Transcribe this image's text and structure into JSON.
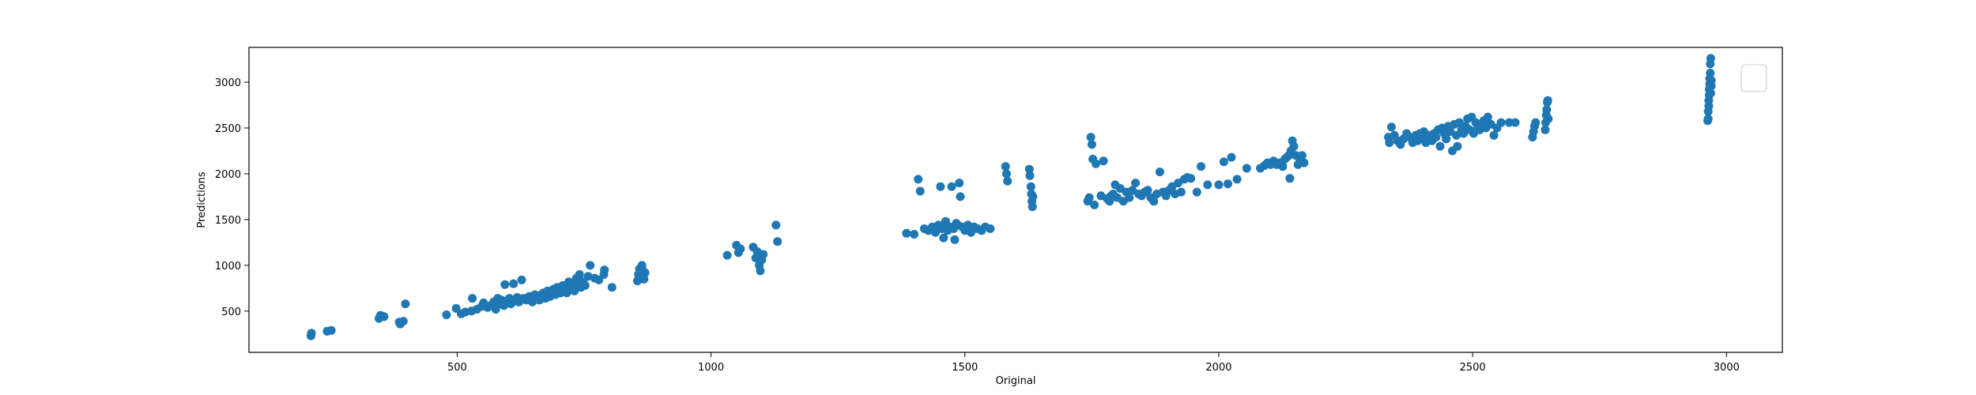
{
  "chart_data": {
    "type": "scatter",
    "title": "",
    "xlabel": "Original",
    "ylabel": "Predictions",
    "xlim": [
      90,
      3110
    ],
    "ylim": [
      50,
      3380
    ],
    "xticks": [
      500,
      1000,
      1500,
      2000,
      2500,
      3000
    ],
    "yticks": [
      500,
      1000,
      1500,
      2000,
      2500,
      3000
    ],
    "grid": false,
    "legend": "top-right",
    "marker_color": "#1f77b4",
    "points": [
      [
        212,
        230
      ],
      [
        213,
        260
      ],
      [
        244,
        280
      ],
      [
        252,
        290
      ],
      [
        346,
        420
      ],
      [
        349,
        455
      ],
      [
        356,
        440
      ],
      [
        386,
        380
      ],
      [
        388,
        360
      ],
      [
        394,
        390
      ],
      [
        398,
        580
      ],
      [
        479,
        460
      ],
      [
        498,
        530
      ],
      [
        508,
        470
      ],
      [
        516,
        490
      ],
      [
        528,
        500
      ],
      [
        530,
        640
      ],
      [
        539,
        520
      ],
      [
        548,
        550
      ],
      [
        552,
        590
      ],
      [
        560,
        540
      ],
      [
        566,
        560
      ],
      [
        572,
        600
      ],
      [
        576,
        520
      ],
      [
        580,
        640
      ],
      [
        584,
        580
      ],
      [
        588,
        620
      ],
      [
        592,
        560
      ],
      [
        594,
        790
      ],
      [
        598,
        600
      ],
      [
        603,
        640
      ],
      [
        606,
        580
      ],
      [
        611,
        800
      ],
      [
        615,
        610
      ],
      [
        618,
        650
      ],
      [
        622,
        600
      ],
      [
        627,
        840
      ],
      [
        630,
        640
      ],
      [
        636,
        620
      ],
      [
        642,
        660
      ],
      [
        648,
        600
      ],
      [
        653,
        680
      ],
      [
        657,
        640
      ],
      [
        662,
        620
      ],
      [
        666,
        680
      ],
      [
        670,
        700
      ],
      [
        674,
        640
      ],
      [
        678,
        720
      ],
      [
        683,
        660
      ],
      [
        687,
        700
      ],
      [
        690,
        740
      ],
      [
        694,
        680
      ],
      [
        697,
        760
      ],
      [
        701,
        720
      ],
      [
        704,
        700
      ],
      [
        708,
        780
      ],
      [
        712,
        740
      ],
      [
        716,
        700
      ],
      [
        720,
        820
      ],
      [
        724,
        760
      ],
      [
        728,
        800
      ],
      [
        731,
        720
      ],
      [
        735,
        860
      ],
      [
        737,
        780
      ],
      [
        741,
        900
      ],
      [
        744,
        760
      ],
      [
        748,
        820
      ],
      [
        752,
        780
      ],
      [
        758,
        880
      ],
      [
        762,
        1000
      ],
      [
        771,
        860
      ],
      [
        779,
        840
      ],
      [
        789,
        900
      ],
      [
        790,
        950
      ],
      [
        805,
        760
      ],
      [
        855,
        830
      ],
      [
        857,
        900
      ],
      [
        859,
        960
      ],
      [
        862,
        880
      ],
      [
        864,
        1000
      ],
      [
        866,
        940
      ],
      [
        868,
        850
      ],
      [
        870,
        920
      ],
      [
        1032,
        1110
      ],
      [
        1050,
        1220
      ],
      [
        1054,
        1140
      ],
      [
        1058,
        1180
      ],
      [
        1083,
        1200
      ],
      [
        1088,
        1080
      ],
      [
        1091,
        1150
      ],
      [
        1095,
        1000
      ],
      [
        1097,
        940
      ],
      [
        1100,
        1060
      ],
      [
        1103,
        1120
      ],
      [
        1128,
        1440
      ],
      [
        1131,
        1260
      ],
      [
        1385,
        1350
      ],
      [
        1400,
        1340
      ],
      [
        1408,
        1940
      ],
      [
        1412,
        1810
      ],
      [
        1420,
        1400
      ],
      [
        1428,
        1380
      ],
      [
        1436,
        1420
      ],
      [
        1442,
        1360
      ],
      [
        1448,
        1440
      ],
      [
        1452,
        1860
      ],
      [
        1455,
        1400
      ],
      [
        1458,
        1300
      ],
      [
        1462,
        1480
      ],
      [
        1466,
        1380
      ],
      [
        1470,
        1420
      ],
      [
        1474,
        1860
      ],
      [
        1478,
        1400
      ],
      [
        1480,
        1280
      ],
      [
        1483,
        1460
      ],
      [
        1486,
        1440
      ],
      [
        1489,
        1900
      ],
      [
        1491,
        1750
      ],
      [
        1495,
        1420
      ],
      [
        1500,
        1380
      ],
      [
        1506,
        1440
      ],
      [
        1512,
        1360
      ],
      [
        1518,
        1420
      ],
      [
        1525,
        1400
      ],
      [
        1533,
        1380
      ],
      [
        1540,
        1420
      ],
      [
        1550,
        1400
      ],
      [
        1580,
        2080
      ],
      [
        1582,
        2000
      ],
      [
        1584,
        1920
      ],
      [
        1627,
        2050
      ],
      [
        1628,
        1980
      ],
      [
        1630,
        1860
      ],
      [
        1631,
        1780
      ],
      [
        1632,
        1700
      ],
      [
        1633,
        1640
      ],
      [
        1634,
        1750
      ],
      [
        1742,
        1700
      ],
      [
        1745,
        1740
      ],
      [
        1748,
        2400
      ],
      [
        1750,
        2320
      ],
      [
        1752,
        2160
      ],
      [
        1755,
        1660
      ],
      [
        1758,
        2110
      ],
      [
        1768,
        1760
      ],
      [
        1773,
        2140
      ],
      [
        1780,
        1730
      ],
      [
        1785,
        1700
      ],
      [
        1788,
        1760
      ],
      [
        1792,
        1780
      ],
      [
        1796,
        1880
      ],
      [
        1800,
        1740
      ],
      [
        1806,
        1840
      ],
      [
        1812,
        1700
      ],
      [
        1818,
        1800
      ],
      [
        1824,
        1740
      ],
      [
        1830,
        1820
      ],
      [
        1836,
        1900
      ],
      [
        1842,
        1780
      ],
      [
        1848,
        1760
      ],
      [
        1854,
        1800
      ],
      [
        1860,
        1820
      ],
      [
        1866,
        1740
      ],
      [
        1872,
        1700
      ],
      [
        1878,
        1780
      ],
      [
        1884,
        2020
      ],
      [
        1890,
        1800
      ],
      [
        1896,
        1760
      ],
      [
        1902,
        1820
      ],
      [
        1908,
        1860
      ],
      [
        1914,
        1780
      ],
      [
        1920,
        1900
      ],
      [
        1926,
        1800
      ],
      [
        1932,
        1940
      ],
      [
        1938,
        1960
      ],
      [
        1945,
        1950
      ],
      [
        1957,
        1800
      ],
      [
        1965,
        2080
      ],
      [
        1978,
        1880
      ],
      [
        2000,
        1880
      ],
      [
        2010,
        2130
      ],
      [
        2018,
        1890
      ],
      [
        2025,
        2180
      ],
      [
        2036,
        1940
      ],
      [
        2055,
        2060
      ],
      [
        2082,
        2060
      ],
      [
        2090,
        2090
      ],
      [
        2096,
        2120
      ],
      [
        2102,
        2100
      ],
      [
        2108,
        2140
      ],
      [
        2114,
        2100
      ],
      [
        2120,
        2120
      ],
      [
        2126,
        2080
      ],
      [
        2130,
        2160
      ],
      [
        2134,
        2180
      ],
      [
        2138,
        2200
      ],
      [
        2140,
        1950
      ],
      [
        2142,
        2250
      ],
      [
        2145,
        2360
      ],
      [
        2148,
        2300
      ],
      [
        2152,
        2200
      ],
      [
        2156,
        2100
      ],
      [
        2160,
        2140
      ],
      [
        2164,
        2200
      ],
      [
        2168,
        2120
      ],
      [
        2334,
        2400
      ],
      [
        2336,
        2340
      ],
      [
        2340,
        2510
      ],
      [
        2346,
        2420
      ],
      [
        2352,
        2360
      ],
      [
        2358,
        2320
      ],
      [
        2364,
        2380
      ],
      [
        2370,
        2440
      ],
      [
        2376,
        2400
      ],
      [
        2382,
        2340
      ],
      [
        2388,
        2420
      ],
      [
        2392,
        2360
      ],
      [
        2396,
        2440
      ],
      [
        2400,
        2400
      ],
      [
        2404,
        2460
      ],
      [
        2408,
        2340
      ],
      [
        2412,
        2380
      ],
      [
        2416,
        2420
      ],
      [
        2420,
        2360
      ],
      [
        2424,
        2440
      ],
      [
        2428,
        2400
      ],
      [
        2432,
        2480
      ],
      [
        2436,
        2300
      ],
      [
        2440,
        2500
      ],
      [
        2444,
        2440
      ],
      [
        2448,
        2380
      ],
      [
        2452,
        2520
      ],
      [
        2456,
        2460
      ],
      [
        2460,
        2250
      ],
      [
        2464,
        2540
      ],
      [
        2468,
        2420
      ],
      [
        2470,
        2300
      ],
      [
        2474,
        2560
      ],
      [
        2478,
        2480
      ],
      [
        2482,
        2440
      ],
      [
        2486,
        2520
      ],
      [
        2490,
        2600
      ],
      [
        2494,
        2480
      ],
      [
        2498,
        2620
      ],
      [
        2502,
        2440
      ],
      [
        2506,
        2560
      ],
      [
        2510,
        2500
      ],
      [
        2514,
        2480
      ],
      [
        2518,
        2540
      ],
      [
        2522,
        2580
      ],
      [
        2526,
        2500
      ],
      [
        2530,
        2620
      ],
      [
        2536,
        2540
      ],
      [
        2542,
        2420
      ],
      [
        2548,
        2500
      ],
      [
        2556,
        2560
      ],
      [
        2572,
        2560
      ],
      [
        2584,
        2560
      ],
      [
        2618,
        2400
      ],
      [
        2620,
        2460
      ],
      [
        2622,
        2520
      ],
      [
        2624,
        2560
      ],
      [
        2643,
        2480
      ],
      [
        2644,
        2560
      ],
      [
        2645,
        2640
      ],
      [
        2646,
        2700
      ],
      [
        2647,
        2780
      ],
      [
        2648,
        2800
      ],
      [
        2649,
        2600
      ],
      [
        2963,
        2580
      ],
      [
        2964,
        2600
      ],
      [
        2964,
        2680
      ],
      [
        2965,
        2740
      ],
      [
        2965,
        2800
      ],
      [
        2966,
        2860
      ],
      [
        2966,
        2920
      ],
      [
        2967,
        2980
      ],
      [
        2967,
        3040
      ],
      [
        2968,
        3100
      ],
      [
        2968,
        3200
      ],
      [
        2969,
        3260
      ],
      [
        2969,
        2880
      ],
      [
        2970,
        2960
      ],
      [
        2970,
        3020
      ]
    ]
  }
}
